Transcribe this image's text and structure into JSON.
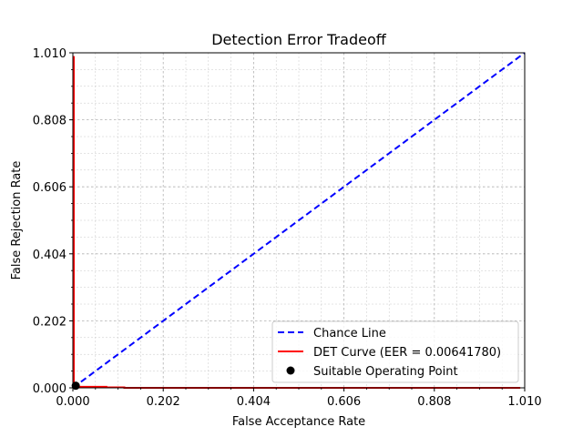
{
  "chart_data": {
    "type": "line",
    "title": "Detection Error Tradeoff",
    "xlabel": "False Acceptance Rate",
    "ylabel": "False Rejection Rate",
    "xlim": [
      0.0,
      1.01
    ],
    "ylim": [
      0.0,
      1.01
    ],
    "xticks": [
      0.0,
      0.202,
      0.404,
      0.606,
      0.808,
      1.01
    ],
    "yticks": [
      0.0,
      0.202,
      0.404,
      0.606,
      0.808,
      1.01
    ],
    "xtick_labels": [
      "0.000",
      "0.202",
      "0.404",
      "0.606",
      "0.808",
      "1.010"
    ],
    "ytick_labels": [
      "0.000",
      "0.202",
      "0.404",
      "0.606",
      "0.808",
      "1.010"
    ],
    "grid": true,
    "legend_location": "lower-right",
    "series": [
      {
        "name": "Chance Line",
        "kind": "line",
        "style": "dashed",
        "color": "#0000ff",
        "x": [
          0.0,
          1.01
        ],
        "y": [
          0.0,
          1.01
        ]
      },
      {
        "name": "DET Curve (EER = 0.00641780)",
        "kind": "line",
        "style": "solid",
        "color": "#ff0000",
        "x": [
          0.0021,
          0.0021,
          0.0021,
          0.0073,
          0.0073,
          0.0124,
          0.0124,
          0.075,
          0.075,
          0.115,
          0.115,
          1.0
        ],
        "y": [
          1.0,
          0.4,
          0.0064,
          0.0064,
          0.0045,
          0.0045,
          0.0032,
          0.0032,
          0.0012,
          0.0012,
          0.0,
          0.0
        ]
      },
      {
        "name": "Suitable Operating Point",
        "kind": "point",
        "color": "#000000",
        "x": [
          0.0064
        ],
        "y": [
          0.0064
        ]
      }
    ]
  }
}
